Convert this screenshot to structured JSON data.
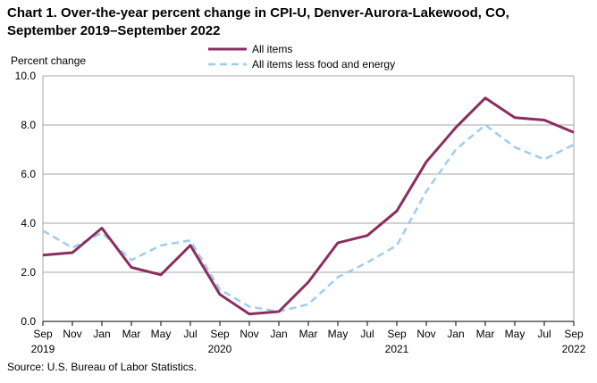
{
  "title_line1": "Chart 1. Over-the-year percent change in CPI-U, Denver-Aurora-Lakewood, CO,",
  "title_line2": "September 2019–September 2022",
  "source": "Source: U.S. Bureau of Labor Statistics.",
  "chart_data": {
    "type": "line",
    "title": "Chart 1. Over-the-year percent change in CPI-U, Denver-Aurora-Lakewood, CO, September 2019–September 2022",
    "ylabel": "Percent change",
    "xlabel": "",
    "ylim": [
      0,
      10
    ],
    "yticks": [
      "0.0",
      "2.0",
      "4.0",
      "6.0",
      "8.0",
      "10.0"
    ],
    "grid": true,
    "legend_position": "top-center",
    "x": [
      "Sep 2019",
      "Nov 2019",
      "Jan 2020",
      "Mar 2020",
      "May 2020",
      "Jul 2020",
      "Sep 2020",
      "Nov 2020",
      "Jan 2021",
      "Mar 2021",
      "May 2021",
      "Jul 2021",
      "Sep 2021",
      "Nov 2021",
      "Jan 2022",
      "Mar 2022",
      "May 2022",
      "Jul 2022",
      "Sep 2022"
    ],
    "xtick_labels": [
      {
        "month": "Sep",
        "year": "2019"
      },
      {
        "month": "Nov",
        "year": ""
      },
      {
        "month": "Jan",
        "year": ""
      },
      {
        "month": "Mar",
        "year": ""
      },
      {
        "month": "May",
        "year": ""
      },
      {
        "month": "Jul",
        "year": ""
      },
      {
        "month": "Sep",
        "year": "2020"
      },
      {
        "month": "Nov",
        "year": ""
      },
      {
        "month": "Jan",
        "year": ""
      },
      {
        "month": "Mar",
        "year": ""
      },
      {
        "month": "May",
        "year": ""
      },
      {
        "month": "Jul",
        "year": ""
      },
      {
        "month": "Sep",
        "year": "2021"
      },
      {
        "month": "Nov",
        "year": ""
      },
      {
        "month": "Jan",
        "year": ""
      },
      {
        "month": "Mar",
        "year": ""
      },
      {
        "month": "May",
        "year": ""
      },
      {
        "month": "Jul",
        "year": ""
      },
      {
        "month": "Sep",
        "year": "2022"
      }
    ],
    "series": [
      {
        "name": "All items",
        "color": "#8b2e5e",
        "style": "solid",
        "values": [
          2.7,
          2.8,
          3.8,
          2.2,
          1.9,
          3.1,
          1.1,
          0.3,
          0.4,
          1.6,
          3.2,
          3.5,
          4.5,
          6.5,
          7.9,
          9.1,
          8.3,
          8.2,
          7.7
        ]
      },
      {
        "name": "All items less food and energy",
        "color": "#9dcdee",
        "style": "dashed",
        "values": [
          3.7,
          3.0,
          3.6,
          2.5,
          3.1,
          3.3,
          1.3,
          0.6,
          0.4,
          0.7,
          1.8,
          2.4,
          3.1,
          5.3,
          7.0,
          8.0,
          7.1,
          6.6,
          7.2
        ]
      }
    ]
  }
}
